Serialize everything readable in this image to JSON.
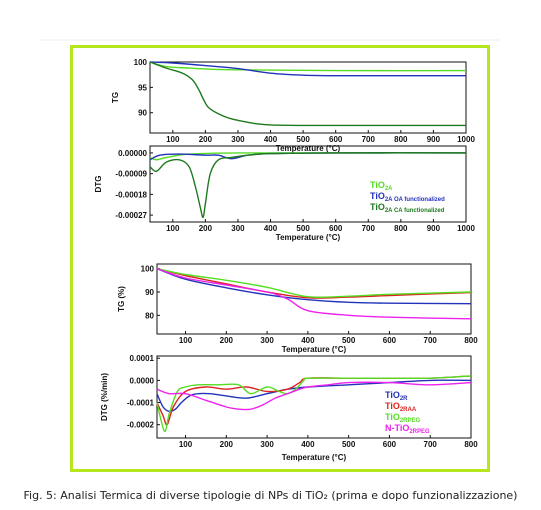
{
  "figure": {
    "caption": "Fig. 5: Analisi Termica di diverse tipologie di NPs di TiO₂ (prima e dopo funzionalizzazione)",
    "frame_color": "#b5e61d"
  },
  "chart_data": [
    {
      "type": "line",
      "id": "tg_top",
      "xlabel": "Temperature (°C)",
      "ylabel": "TG",
      "xlim": [
        30,
        1000
      ],
      "ylim": [
        86,
        100
      ],
      "xticks": [
        100,
        200,
        300,
        400,
        500,
        600,
        700,
        800,
        900,
        1000
      ],
      "yticks": [
        90,
        95,
        100
      ],
      "series": [
        {
          "name": "TiO2A",
          "color": "#55dd22",
          "x": [
            30,
            80,
            150,
            250,
            400,
            600,
            1000
          ],
          "y": [
            100,
            99.1,
            98.8,
            98.5,
            98.4,
            98.3,
            98.3
          ]
        },
        {
          "name": "TiO2A OA functionalized",
          "color": "#2233bb",
          "x": [
            30,
            100,
            200,
            300,
            400,
            500,
            600,
            800,
            1000
          ],
          "y": [
            100,
            99.8,
            99.3,
            98.7,
            97.8,
            97.4,
            97.3,
            97.3,
            97.3
          ]
        },
        {
          "name": "TiO2A CA functionalized",
          "color": "#1e7a1e",
          "x": [
            30,
            80,
            130,
            160,
            180,
            195,
            210,
            240,
            280,
            350,
            400,
            500,
            700,
            1000
          ],
          "y": [
            100,
            98.8,
            97.8,
            96.5,
            94.5,
            92.5,
            91,
            89.8,
            88.8,
            87.9,
            87.6,
            87.5,
            87.5,
            87.5
          ]
        }
      ]
    },
    {
      "type": "line",
      "id": "dtg_top",
      "xlabel": "Temperature (°C)",
      "ylabel": "DTG",
      "xlim": [
        30,
        1000
      ],
      "ylim": [
        -0.0003,
        3e-05
      ],
      "xticks": [
        100,
        200,
        300,
        400,
        500,
        600,
        700,
        800,
        900,
        1000
      ],
      "ytick_labels": [
        "0.00000",
        "-0.00009",
        "-0.00018",
        "-0.00027"
      ],
      "yticks": [
        0,
        -9e-05,
        -0.00018,
        -0.00027
      ],
      "series": [
        {
          "name": "TiO2A",
          "color": "#55dd22",
          "x": [
            30,
            50,
            80,
            150,
            300,
            600,
            1000
          ],
          "y": [
            -2e-05,
            -3e-05,
            -2e-05,
            -5e-06,
            0,
            0,
            0
          ]
        },
        {
          "name": "TiO2A OA functionalized",
          "color": "#2233bb",
          "x": [
            30,
            60,
            120,
            200,
            240,
            280,
            330,
            400,
            600,
            1000
          ],
          "y": [
            -3e-05,
            -1e-05,
            -5e-06,
            -1e-05,
            -1e-05,
            -2.5e-05,
            -1e-05,
            -3e-06,
            0,
            0
          ]
        },
        {
          "name": "TiO2A CA functionalized",
          "color": "#1e7a1e",
          "x": [
            30,
            50,
            80,
            120,
            150,
            170,
            185,
            193,
            200,
            215,
            240,
            280,
            330,
            400,
            600,
            1000
          ],
          "y": [
            -6e-05,
            -8e-05,
            -4e-05,
            -3e-05,
            -6e-05,
            -0.00015,
            -0.00024,
            -0.00028,
            -0.00022,
            -9e-05,
            -3e-05,
            -2e-05,
            -1e-05,
            -3e-06,
            0,
            0
          ]
        }
      ],
      "legend": [
        {
          "base": "TiO",
          "sub": "2A",
          "suffix": "",
          "color": "#55dd22"
        },
        {
          "base": "TiO",
          "sub": "2A OA functionalized",
          "suffix": "",
          "color": "#2233bb"
        },
        {
          "base": "TiO",
          "sub": "2A   CA functionalized",
          "suffix": "",
          "color": "#1e7a1e"
        }
      ]
    },
    {
      "type": "line",
      "id": "tg_bottom",
      "xlabel": "Temperature (°C)",
      "ylabel": "TG (%)",
      "xlim": [
        30,
        800
      ],
      "ylim": [
        72,
        102
      ],
      "xticks": [
        100,
        200,
        300,
        400,
        500,
        600,
        700,
        800
      ],
      "yticks": [
        80,
        90,
        100
      ],
      "series": [
        {
          "name": "TiO2R",
          "color": "#2233bb",
          "x": [
            30,
            100,
            200,
            300,
            400,
            500,
            600,
            800
          ],
          "y": [
            100,
            95.5,
            91.8,
            88.8,
            86.7,
            85.6,
            85.2,
            85
          ]
        },
        {
          "name": "TiO2RAA",
          "color": "#dd2222",
          "x": [
            30,
            100,
            200,
            300,
            400,
            500,
            600,
            800
          ],
          "y": [
            100,
            97,
            93.5,
            90,
            87.5,
            87.8,
            88.5,
            89.8
          ]
        },
        {
          "name": "TiO2RPEG",
          "color": "#55dd22",
          "x": [
            30,
            100,
            200,
            300,
            400,
            500,
            600,
            800
          ],
          "y": [
            100,
            97.5,
            95,
            92,
            88,
            88.2,
            89,
            90
          ]
        },
        {
          "name": "N-TiO2RPEG",
          "color": "#ee22ee",
          "x": [
            30,
            100,
            200,
            300,
            350,
            400,
            500,
            600,
            800
          ],
          "y": [
            100,
            96,
            93,
            90,
            87,
            82,
            80,
            79.2,
            78.5
          ]
        }
      ]
    },
    {
      "type": "line",
      "id": "dtg_bottom",
      "xlabel": "Temperature (°C)",
      "ylabel": "DTG (%/min)",
      "xlim": [
        30,
        800
      ],
      "ylim": [
        -0.00026,
        0.00011
      ],
      "xticks": [
        100,
        200,
        300,
        400,
        500,
        600,
        700,
        800
      ],
      "ytick_labels": [
        "0.0001",
        "0.0000",
        "-0.0001",
        "-0.0002"
      ],
      "yticks": [
        0.0001,
        0,
        -0.0001,
        -0.0002
      ],
      "series": [
        {
          "name": "TiO2R",
          "color": "#2233bb",
          "x": [
            30,
            45,
            60,
            75,
            90,
            110,
            130,
            160,
            200,
            250,
            300,
            350,
            400,
            500,
            600,
            700,
            800
          ],
          "y": [
            -6e-05,
            -0.00012,
            -0.00014,
            -0.00013,
            -0.0001,
            -7e-05,
            -6e-05,
            -6e-05,
            -7e-05,
            -8e-05,
            -6e-05,
            -4e-05,
            -3e-05,
            -2e-05,
            -1e-05,
            0,
            0
          ]
        },
        {
          "name": "TiO2RAA",
          "color": "#dd2222",
          "x": [
            30,
            45,
            55,
            70,
            100,
            150,
            200,
            250,
            300,
            350,
            380,
            400,
            500,
            600,
            700,
            800
          ],
          "y": [
            -0.0001,
            -0.00016,
            -0.0002,
            -0.00012,
            -5e-05,
            -3e-05,
            -4e-05,
            -3e-05,
            -5e-05,
            -4e-05,
            -1e-05,
            1e-05,
            1e-05,
            1e-05,
            1e-05,
            2e-05
          ]
        },
        {
          "name": "TiO2RPEG",
          "color": "#55dd22",
          "x": [
            30,
            40,
            50,
            60,
            80,
            100,
            130,
            180,
            230,
            260,
            300,
            330,
            350,
            370,
            390,
            400,
            500,
            600,
            700,
            800
          ],
          "y": [
            -0.0001,
            -0.00018,
            -0.00023,
            -0.00015,
            -5e-05,
            -3e-05,
            -2e-05,
            -2e-05,
            -2e-05,
            -6e-05,
            -3e-05,
            -5e-05,
            -6e-05,
            -4e-05,
            0,
            1e-05,
            1e-05,
            1e-05,
            1e-05,
            2e-05
          ]
        },
        {
          "name": "N-TiO2RPEG",
          "color": "#ee22ee",
          "x": [
            30,
            60,
            100,
            150,
            200,
            230,
            260,
            290,
            320,
            350,
            380,
            400,
            450,
            500,
            600,
            700,
            800
          ],
          "y": [
            -4e-05,
            -6e-05,
            -6e-05,
            -9e-05,
            -0.00012,
            -0.00013,
            -0.00013,
            -0.00011,
            -8e-05,
            -6e-05,
            -4e-05,
            -3e-05,
            -2e-05,
            -1e-05,
            -1e-05,
            -2e-05,
            -1e-05
          ]
        }
      ],
      "legend": [
        {
          "base": "TiO",
          "sub": "2R",
          "suffix": "",
          "color": "#2233bb"
        },
        {
          "base": "TiO",
          "sub": "2RAA",
          "suffix": "",
          "color": "#dd2222"
        },
        {
          "base": "TiO",
          "sub": "2RPEG",
          "suffix": "",
          "color": "#55dd22"
        },
        {
          "base": "N-TiO",
          "sub": "2RPEG",
          "suffix": "",
          "color": "#ee22ee"
        }
      ]
    }
  ]
}
